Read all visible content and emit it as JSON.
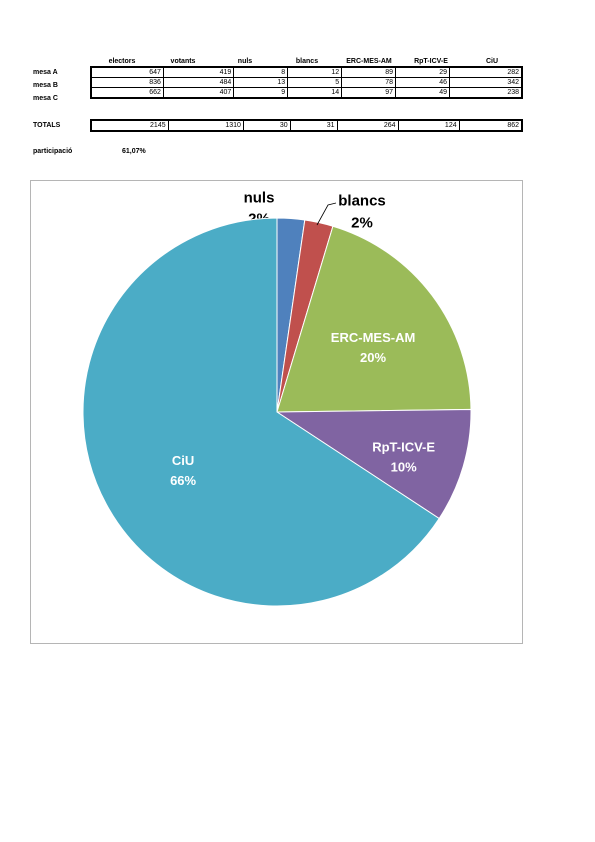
{
  "table": {
    "columns": [
      "electors",
      "votants",
      "nuls",
      "blancs",
      "ERC-MES-AM",
      "RpT-ICV-E",
      "CiU"
    ],
    "rows": [
      {
        "label": "mesa A",
        "values": [
          "647",
          "419",
          "8",
          "12",
          "89",
          "29",
          "282"
        ]
      },
      {
        "label": "mesa B",
        "values": [
          "836",
          "484",
          "13",
          "5",
          "78",
          "46",
          "342"
        ]
      },
      {
        "label": "mesa C",
        "values": [
          "662",
          "407",
          "9",
          "14",
          "97",
          "49",
          "238"
        ]
      }
    ],
    "totals": {
      "label": "TOTALS",
      "values": [
        "2145",
        "1310",
        "30",
        "31",
        "264",
        "124",
        "862"
      ]
    }
  },
  "participation": {
    "label": "participació",
    "value": "61,07%"
  },
  "chart_data": {
    "type": "pie",
    "slices": [
      {
        "name": "nuls",
        "value": 30,
        "percent_label": "2%",
        "color": "#4f81bd"
      },
      {
        "name": "blancs",
        "value": 31,
        "percent_label": "2%",
        "color": "#c0504d"
      },
      {
        "name": "ERC-MES-AM",
        "value": 264,
        "percent_label": "20%",
        "color": "#9bbb59"
      },
      {
        "name": "RpT-ICV-E",
        "value": 124,
        "percent_label": "10%",
        "color": "#8064a2"
      },
      {
        "name": "CiU",
        "value": 862,
        "percent_label": "66%",
        "color": "#4bacc6"
      }
    ],
    "start_angle": "12 o'clock, clockwise",
    "legend": "none (labels on/near slices)"
  }
}
